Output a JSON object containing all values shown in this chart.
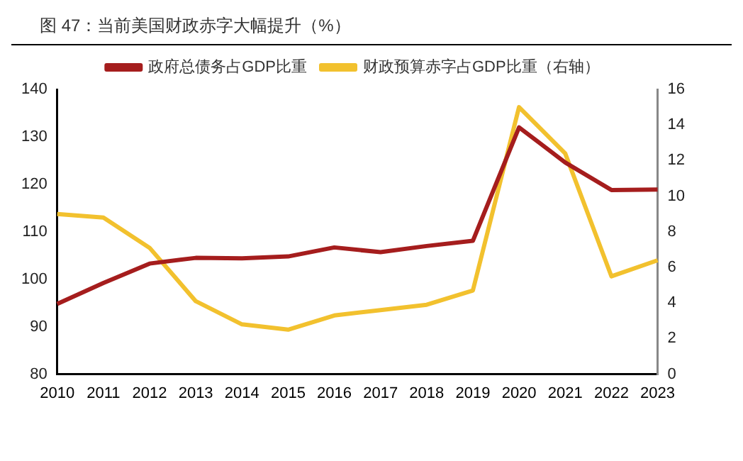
{
  "chart_data": {
    "type": "line",
    "title": "图 47：当前美国财政赤字大幅提升（%）",
    "categories": [
      "2010",
      "2011",
      "2012",
      "2013",
      "2014",
      "2015",
      "2016",
      "2017",
      "2018",
      "2019",
      "2020",
      "2021",
      "2022",
      "2023"
    ],
    "series": [
      {
        "name": "政府总债务占GDP比重",
        "color": "#a51d1d",
        "values": [
          94.8,
          99.2,
          103.3,
          104.5,
          104.4,
          104.8,
          106.7,
          105.7,
          107,
          108.1,
          132,
          124.6,
          118.8,
          118.9
        ]
      },
      {
        "name": "财政预算赤字占GDP比重（右轴）",
        "color": "#f2c12e",
        "axis": "y2",
        "values": [
          9.0,
          8.8,
          7.1,
          4.1,
          2.8,
          2.5,
          3.3,
          3.6,
          3.9,
          4.7,
          15.0,
          12.4,
          5.5,
          6.4
        ]
      }
    ],
    "ylim": [
      80,
      140
    ],
    "yticks": [
      80,
      90,
      100,
      110,
      120,
      130,
      140
    ],
    "y2lim": [
      0,
      16
    ],
    "y2ticks": [
      0,
      2,
      4,
      6,
      8,
      10,
      12,
      14,
      16
    ],
    "grid": false,
    "legend": "top",
    "marker": "none",
    "line_style": "solid"
  }
}
